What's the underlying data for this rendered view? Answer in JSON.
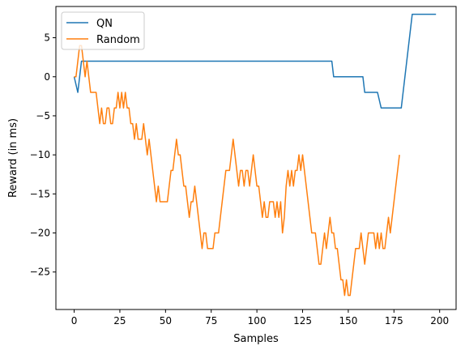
{
  "chart_data": {
    "type": "line",
    "title": "",
    "xlabel": "Samples",
    "ylabel": "Reward (in ms)",
    "xlim": [
      -10,
      209
    ],
    "ylim": [
      -29.8,
      9.0
    ],
    "xticks": [
      0,
      25,
      50,
      75,
      100,
      125,
      150,
      175,
      200
    ],
    "yticks": [
      5,
      0,
      -5,
      -10,
      -15,
      -20,
      -25
    ],
    "legend_position": "top-left",
    "grid": false,
    "series": [
      {
        "name": "QN",
        "color": "#1f77b4",
        "points": [
          [
            0,
            0
          ],
          [
            2,
            -2
          ],
          [
            4,
            2
          ],
          [
            141,
            2
          ],
          [
            142,
            0
          ],
          [
            158,
            0
          ],
          [
            159,
            -2
          ],
          [
            166,
            -2
          ],
          [
            168,
            -4
          ],
          [
            179,
            -4
          ],
          [
            185,
            8
          ],
          [
            198,
            8
          ]
        ]
      },
      {
        "name": "Random",
        "color": "#ff7f0e",
        "points": [
          [
            0,
            0
          ],
          [
            1,
            0
          ],
          [
            2,
            2
          ],
          [
            3,
            4
          ],
          [
            4,
            4
          ],
          [
            5,
            2
          ],
          [
            6,
            0
          ],
          [
            7,
            2
          ],
          [
            8,
            0
          ],
          [
            9,
            -2
          ],
          [
            10,
            -2
          ],
          [
            11,
            -2
          ],
          [
            12,
            -2
          ],
          [
            13,
            -4
          ],
          [
            14,
            -6
          ],
          [
            15,
            -4
          ],
          [
            16,
            -6
          ],
          [
            17,
            -6
          ],
          [
            18,
            -4
          ],
          [
            19,
            -4
          ],
          [
            20,
            -6
          ],
          [
            21,
            -6
          ],
          [
            22,
            -4
          ],
          [
            23,
            -4
          ],
          [
            24,
            -2
          ],
          [
            25,
            -4
          ],
          [
            26,
            -2
          ],
          [
            27,
            -4
          ],
          [
            28,
            -2
          ],
          [
            29,
            -4
          ],
          [
            30,
            -4
          ],
          [
            31,
            -6
          ],
          [
            32,
            -6
          ],
          [
            33,
            -8
          ],
          [
            34,
            -6
          ],
          [
            35,
            -8
          ],
          [
            36,
            -8
          ],
          [
            37,
            -8
          ],
          [
            38,
            -6
          ],
          [
            39,
            -8
          ],
          [
            40,
            -10
          ],
          [
            41,
            -8
          ],
          [
            42,
            -10
          ],
          [
            43,
            -12
          ],
          [
            44,
            -14
          ],
          [
            45,
            -16
          ],
          [
            46,
            -14
          ],
          [
            47,
            -16
          ],
          [
            48,
            -16
          ],
          [
            49,
            -16
          ],
          [
            50,
            -16
          ],
          [
            51,
            -16
          ],
          [
            52,
            -14
          ],
          [
            53,
            -12
          ],
          [
            54,
            -12
          ],
          [
            55,
            -10
          ],
          [
            56,
            -8
          ],
          [
            57,
            -10
          ],
          [
            58,
            -10
          ],
          [
            59,
            -12
          ],
          [
            60,
            -14
          ],
          [
            61,
            -14
          ],
          [
            62,
            -16
          ],
          [
            63,
            -18
          ],
          [
            64,
            -16
          ],
          [
            65,
            -16
          ],
          [
            66,
            -14
          ],
          [
            67,
            -16
          ],
          [
            68,
            -18
          ],
          [
            69,
            -20
          ],
          [
            70,
            -22
          ],
          [
            71,
            -20
          ],
          [
            72,
            -20
          ],
          [
            73,
            -22
          ],
          [
            74,
            -22
          ],
          [
            75,
            -22
          ],
          [
            76,
            -22
          ],
          [
            77,
            -20
          ],
          [
            78,
            -20
          ],
          [
            79,
            -20
          ],
          [
            80,
            -18
          ],
          [
            81,
            -16
          ],
          [
            82,
            -14
          ],
          [
            83,
            -12
          ],
          [
            84,
            -12
          ],
          [
            85,
            -12
          ],
          [
            86,
            -10
          ],
          [
            87,
            -8
          ],
          [
            88,
            -10
          ],
          [
            89,
            -12
          ],
          [
            90,
            -14
          ],
          [
            91,
            -12
          ],
          [
            92,
            -12
          ],
          [
            93,
            -14
          ],
          [
            94,
            -12
          ],
          [
            95,
            -12
          ],
          [
            96,
            -14
          ],
          [
            97,
            -12
          ],
          [
            98,
            -10
          ],
          [
            99,
            -12
          ],
          [
            100,
            -14
          ],
          [
            101,
            -14
          ],
          [
            102,
            -16
          ],
          [
            103,
            -18
          ],
          [
            104,
            -16
          ],
          [
            105,
            -18
          ],
          [
            106,
            -18
          ],
          [
            107,
            -16
          ],
          [
            108,
            -16
          ],
          [
            109,
            -16
          ],
          [
            110,
            -18
          ],
          [
            111,
            -16
          ],
          [
            112,
            -18
          ],
          [
            113,
            -16
          ],
          [
            114,
            -20
          ],
          [
            115,
            -18
          ],
          [
            116,
            -14
          ],
          [
            117,
            -12
          ],
          [
            118,
            -14
          ],
          [
            119,
            -12
          ],
          [
            120,
            -14
          ],
          [
            121,
            -12
          ],
          [
            122,
            -12
          ],
          [
            123,
            -10
          ],
          [
            124,
            -12
          ],
          [
            125,
            -10
          ],
          [
            126,
            -12
          ],
          [
            127,
            -14
          ],
          [
            128,
            -16
          ],
          [
            129,
            -18
          ],
          [
            130,
            -20
          ],
          [
            131,
            -20
          ],
          [
            132,
            -20
          ],
          [
            133,
            -22
          ],
          [
            134,
            -24
          ],
          [
            135,
            -24
          ],
          [
            136,
            -22
          ],
          [
            137,
            -20
          ],
          [
            138,
            -22
          ],
          [
            139,
            -20
          ],
          [
            140,
            -18
          ],
          [
            141,
            -20
          ],
          [
            142,
            -20
          ],
          [
            143,
            -22
          ],
          [
            144,
            -22
          ],
          [
            145,
            -24
          ],
          [
            146,
            -26
          ],
          [
            147,
            -26
          ],
          [
            148,
            -28
          ],
          [
            149,
            -26
          ],
          [
            150,
            -28
          ],
          [
            151,
            -28
          ],
          [
            152,
            -26
          ],
          [
            153,
            -24
          ],
          [
            154,
            -22
          ],
          [
            155,
            -22
          ],
          [
            156,
            -22
          ],
          [
            157,
            -20
          ],
          [
            158,
            -22
          ],
          [
            159,
            -24
          ],
          [
            160,
            -22
          ],
          [
            161,
            -20
          ],
          [
            162,
            -20
          ],
          [
            163,
            -20
          ],
          [
            164,
            -20
          ],
          [
            165,
            -22
          ],
          [
            166,
            -20
          ],
          [
            167,
            -22
          ],
          [
            168,
            -20
          ],
          [
            169,
            -22
          ],
          [
            170,
            -22
          ],
          [
            171,
            -20
          ],
          [
            172,
            -18
          ],
          [
            173,
            -20
          ],
          [
            174,
            -18
          ],
          [
            175,
            -16
          ],
          [
            176,
            -14
          ],
          [
            177,
            -12
          ],
          [
            178,
            -10
          ]
        ]
      }
    ]
  }
}
